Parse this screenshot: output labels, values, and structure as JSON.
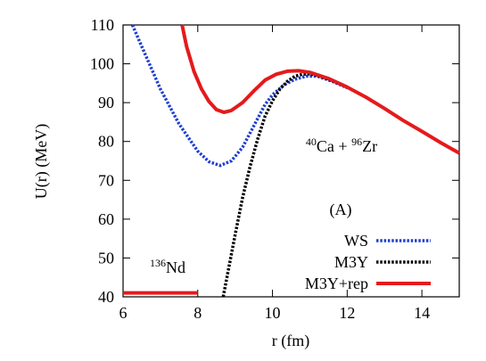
{
  "chart_data": {
    "type": "line",
    "xlabel": "r (fm)",
    "ylabel": "U(r) (MeV)",
    "xlim": [
      6,
      15
    ],
    "ylim": [
      40,
      110
    ],
    "xticks": [
      6,
      8,
      10,
      12,
      14
    ],
    "yticks": [
      40,
      50,
      60,
      70,
      80,
      90,
      100,
      110
    ],
    "grid": false,
    "legend_position": "bottom-right",
    "annotations": [
      {
        "parts": [
          [
            "40",
            "sup"
          ],
          [
            "Ca + ",
            "base"
          ],
          [
            "96",
            "sup"
          ],
          [
            "Zr",
            "base"
          ]
        ]
      },
      {
        "parts": [
          [
            "(A)",
            "base"
          ]
        ]
      }
    ],
    "ground_state": {
      "label_parts": [
        [
          "136",
          "sup"
        ],
        [
          "Nd",
          "base"
        ]
      ],
      "x": [
        6,
        8
      ],
      "y": 41,
      "color": "#e41a1c"
    },
    "series": [
      {
        "name": "WS",
        "color": "#1f3fd0",
        "style": "dotted",
        "x": [
          6.25,
          6.5,
          7.0,
          7.5,
          8.0,
          8.3,
          8.6,
          8.9,
          9.2,
          9.5,
          9.8,
          10.0,
          10.3,
          10.6,
          10.9,
          11.2,
          11.6,
          12.0
        ],
        "y": [
          110,
          104.5,
          93.5,
          84.5,
          77.5,
          74.8,
          73.8,
          75.0,
          78.5,
          84.0,
          89.5,
          92.0,
          94.5,
          96.0,
          96.8,
          96.8,
          95.5,
          93.8
        ]
      },
      {
        "name": "M3Y",
        "color": "#000000",
        "style": "dotted",
        "x": [
          8.68,
          8.8,
          9.0,
          9.2,
          9.4,
          9.6,
          9.8,
          10.0,
          10.2,
          10.4,
          10.6,
          10.8,
          11.0,
          11.2,
          11.5,
          12.0
        ],
        "y": [
          40,
          46.0,
          56.0,
          65.5,
          73.5,
          80.5,
          86.5,
          90.5,
          93.5,
          95.5,
          96.8,
          97.3,
          97.4,
          97.0,
          96.0,
          94.0
        ]
      },
      {
        "name": "M3Y+rep",
        "color": "#e41a1c",
        "style": "solid",
        "x": [
          7.58,
          7.7,
          7.9,
          8.1,
          8.3,
          8.5,
          8.7,
          8.9,
          9.2,
          9.5,
          9.8,
          10.1,
          10.4,
          10.7,
          11.0,
          11.5,
          12.0,
          12.5,
          13.0,
          13.5,
          14.0,
          14.5,
          15.0
        ],
        "y": [
          110,
          104.5,
          98.0,
          93.5,
          90.3,
          88.2,
          87.5,
          88.0,
          90.0,
          93.0,
          95.8,
          97.3,
          98.1,
          98.2,
          97.8,
          96.2,
          94.0,
          91.4,
          88.5,
          85.4,
          82.6,
          79.7,
          77.0
        ]
      }
    ]
  }
}
